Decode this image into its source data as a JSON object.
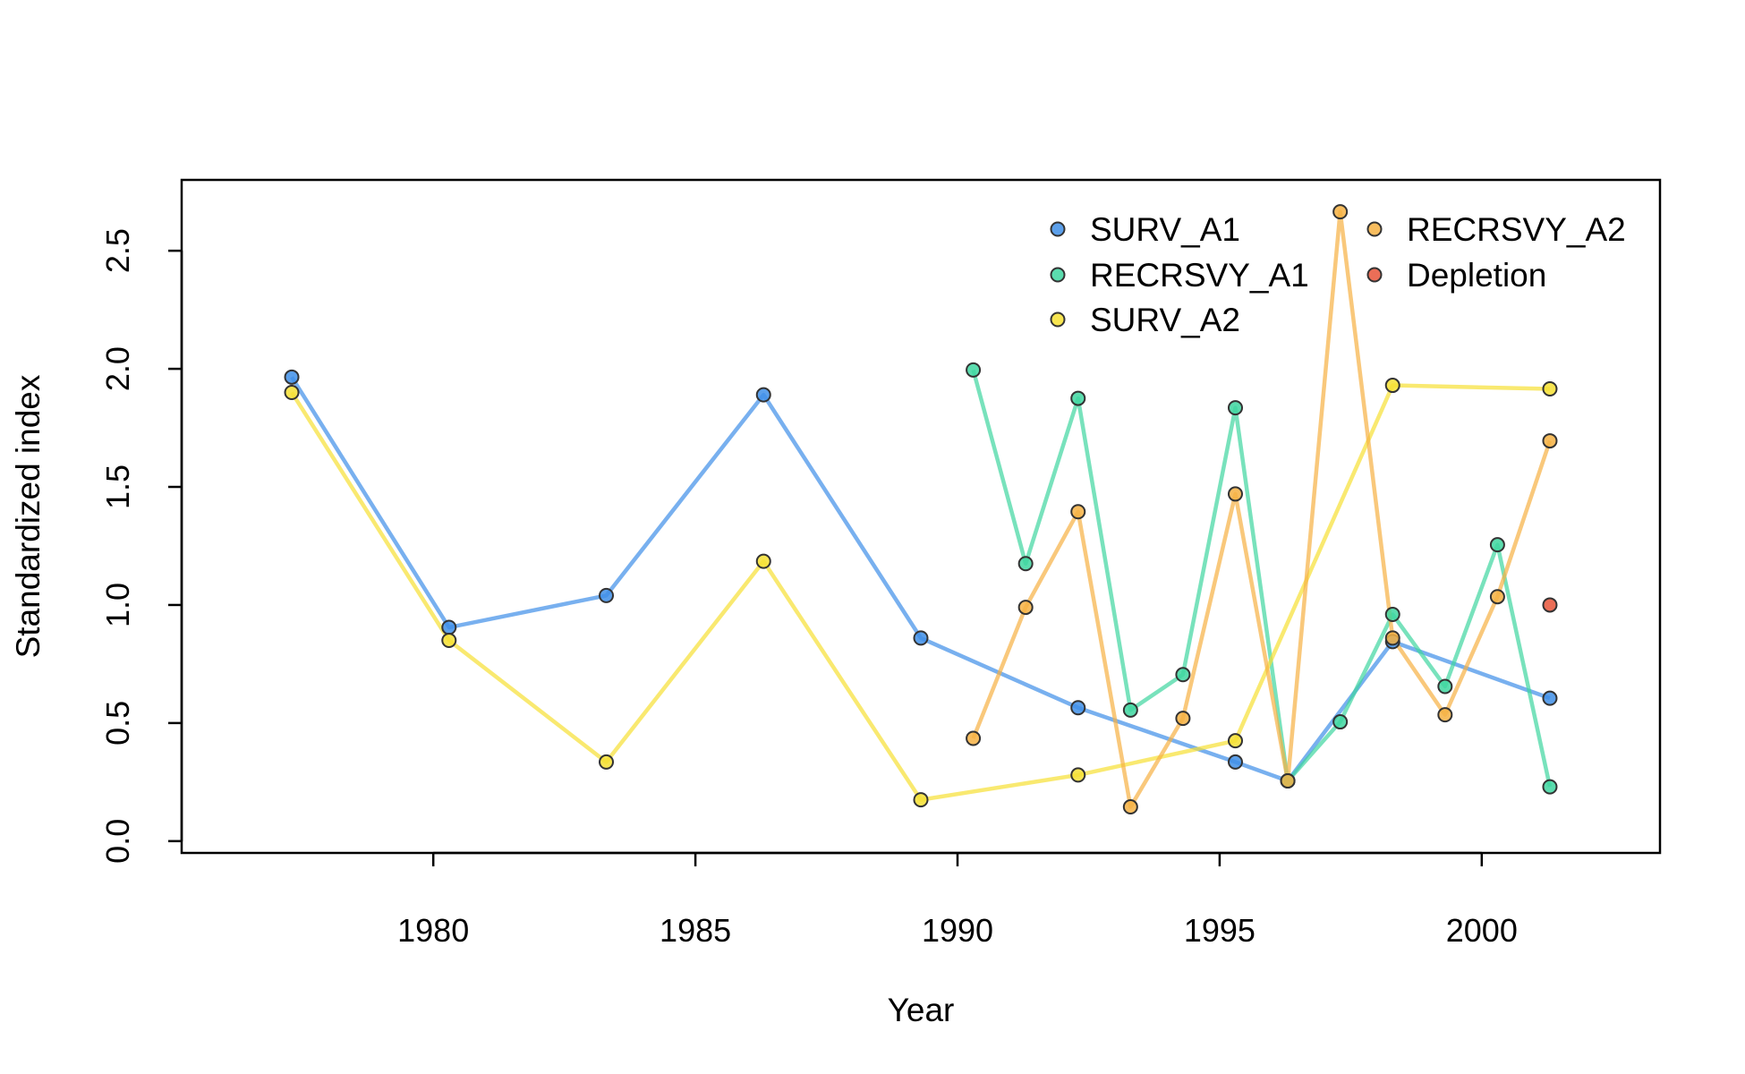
{
  "chart_data": {
    "type": "line",
    "title": "",
    "xlabel": "Year",
    "ylabel": "Standardized index",
    "xlim": [
      1975.2,
      2003.4
    ],
    "ylim": [
      -0.05,
      2.8
    ],
    "xticks": [
      1980,
      1985,
      1990,
      1995,
      2000
    ],
    "yticks": [
      0.0,
      0.5,
      1.0,
      1.5,
      2.0,
      2.5
    ],
    "xtick_labels": [
      "1980",
      "1985",
      "1990",
      "1995",
      "2000"
    ],
    "ytick_labels": [
      "0.0",
      "0.5",
      "1.0",
      "1.5",
      "2.0",
      "2.5"
    ],
    "grid": false,
    "legend_position": "top-right",
    "series": [
      {
        "name": "SURV_A1",
        "color": "#3F8FE8",
        "line": true,
        "points": [
          [
            1977.3,
            1.965
          ],
          [
            1980.3,
            0.905
          ],
          [
            1983.3,
            1.04
          ],
          [
            1986.3,
            1.89
          ],
          [
            1989.3,
            0.86
          ],
          [
            1992.3,
            0.565
          ],
          [
            1995.3,
            0.335
          ],
          [
            1996.3,
            0.255
          ],
          [
            1998.3,
            0.845
          ],
          [
            2001.3,
            0.605
          ]
        ]
      },
      {
        "name": "RECRSVY_A1",
        "color": "#3ED6A0",
        "line": true,
        "points": [
          [
            1990.3,
            1.995
          ],
          [
            1991.3,
            1.175
          ],
          [
            1992.3,
            1.875
          ],
          [
            1993.3,
            0.555
          ],
          [
            1994.3,
            0.705
          ],
          [
            1995.3,
            1.835
          ],
          [
            1996.3,
            0.255
          ],
          [
            1997.3,
            0.505
          ],
          [
            1998.3,
            0.96
          ],
          [
            1999.3,
            0.655
          ],
          [
            2000.3,
            1.255
          ],
          [
            2001.3,
            0.23
          ]
        ]
      },
      {
        "name": "SURV_A2",
        "color": "#F6E033",
        "line": true,
        "points": [
          [
            1977.3,
            1.9
          ],
          [
            1980.3,
            0.85
          ],
          [
            1983.3,
            0.335
          ],
          [
            1986.3,
            1.185
          ],
          [
            1989.3,
            0.175
          ],
          [
            1992.3,
            0.28
          ],
          [
            1995.3,
            0.425
          ],
          [
            1998.3,
            1.93
          ],
          [
            2001.3,
            1.915
          ]
        ]
      },
      {
        "name": "RECRSVY_A2",
        "color": "#F6B143",
        "line": true,
        "points": [
          [
            1990.3,
            0.435
          ],
          [
            1991.3,
            0.99
          ],
          [
            1992.3,
            1.395
          ],
          [
            1993.3,
            0.145
          ],
          [
            1994.3,
            0.52
          ],
          [
            1995.3,
            1.47
          ],
          [
            1996.3,
            0.255
          ],
          [
            1997.3,
            2.665
          ],
          [
            1998.3,
            0.86
          ],
          [
            1999.3,
            0.535
          ],
          [
            2000.3,
            1.035
          ],
          [
            2001.3,
            1.695
          ]
        ]
      },
      {
        "name": "Depletion",
        "color": "#E8553A",
        "line": false,
        "points": [
          [
            2001.3,
            1.0
          ]
        ]
      }
    ]
  }
}
